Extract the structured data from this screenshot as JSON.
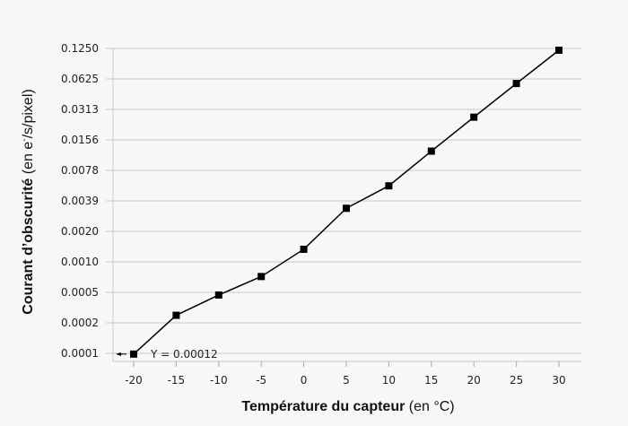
{
  "chart_data": {
    "type": "line",
    "title": "",
    "xlabel_bold": "Température du capteur",
    "xlabel_unit": "(en °C)",
    "ylabel_bold": "Courant d’obscurité",
    "ylabel_unit_pre": "(en e",
    "ylabel_unit_sup": "-",
    "ylabel_unit_post": "/s/pixel)",
    "y_scale": "log2",
    "x_ticks": [
      -20,
      -15,
      -10,
      -5,
      0,
      5,
      10,
      15,
      20,
      25,
      30
    ],
    "x_tick_labels": [
      "-20",
      "-15",
      "-10",
      "-5",
      "0",
      "5",
      "10",
      "15",
      "20",
      "25",
      "30"
    ],
    "y_tick_labels": [
      "0.0001",
      "0.0002",
      "0.0005",
      "0.0010",
      "0.0020",
      "0.0039",
      "0.0078",
      "0.0156",
      "0.0313",
      "0.0625",
      "0.1250"
    ],
    "y_tick_values": [
      0.00012207,
      0.00024414,
      0.00048828,
      0.00097656,
      0.00195313,
      0.00390625,
      0.0078125,
      0.015625,
      0.03125,
      0.0625,
      0.125
    ],
    "xlim": [
      -22.5,
      32.5
    ],
    "grid": "horizontal",
    "series": [
      {
        "marker": "square",
        "color": "#000000",
        "x": [
          -20,
          -15,
          -10,
          -5,
          0,
          5,
          10,
          15,
          20,
          25,
          30
        ],
        "y": [
          0.00012,
          0.00029,
          0.00046,
          0.0007,
          0.0013,
          0.0033,
          0.0055,
          0.0121,
          0.0262,
          0.0563,
          0.12
        ]
      }
    ],
    "annotation": {
      "text": "Y = 0.00012",
      "x": -20,
      "y": 0.00012,
      "arrow": "left"
    }
  }
}
